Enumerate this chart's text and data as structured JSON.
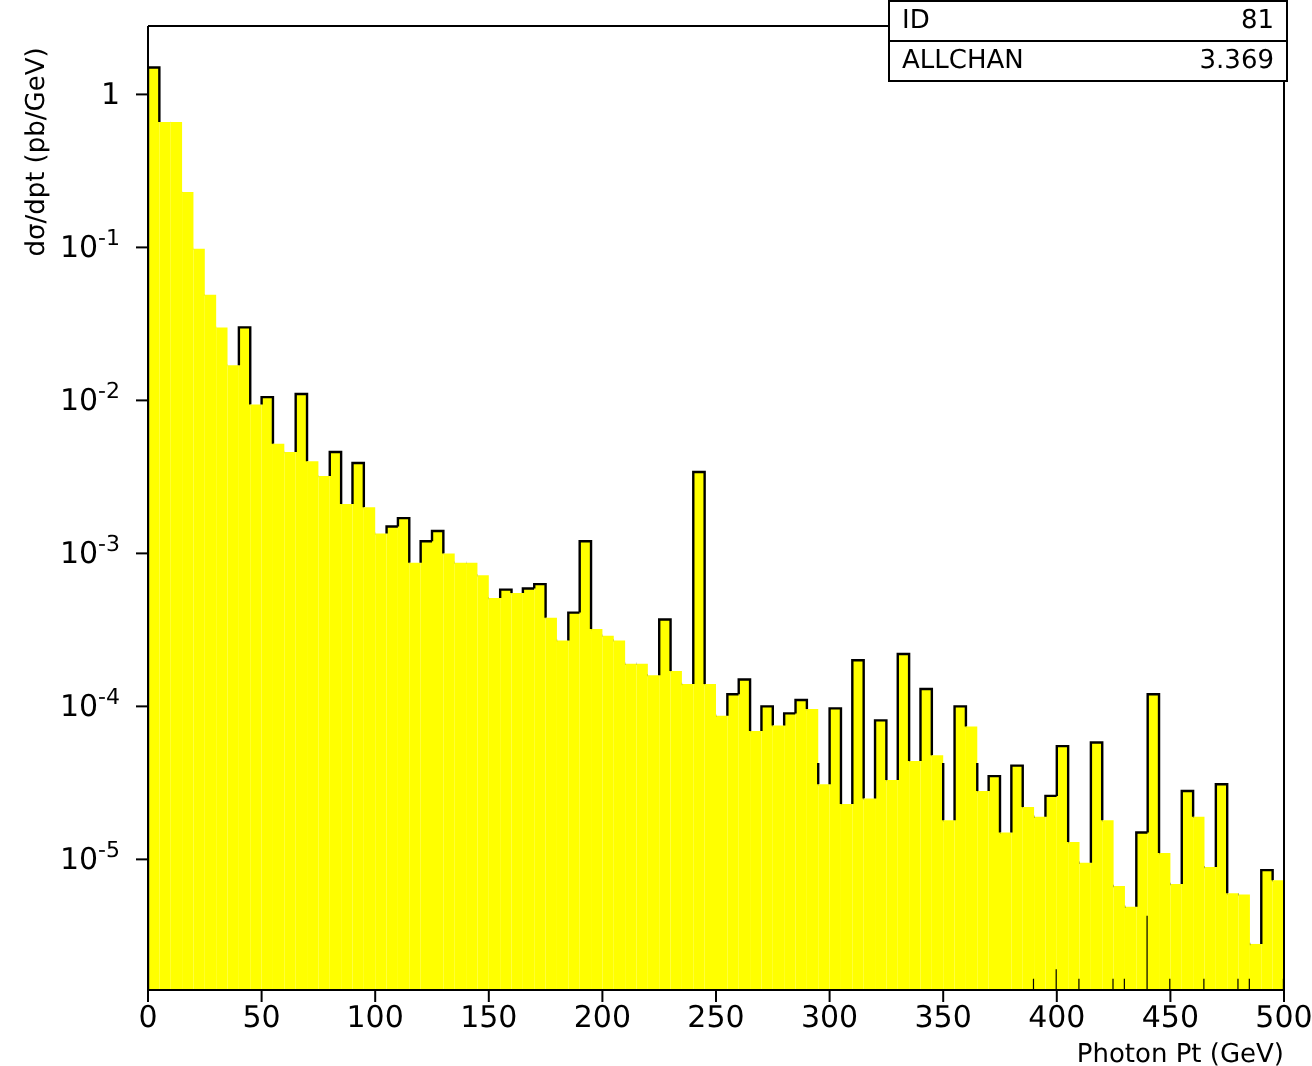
{
  "chart_data": {
    "type": "histogram",
    "xlabel": "Photon Pt (GeV)",
    "ylabel": "dσ/dpt (pb/GeV)",
    "color": "#ffff00",
    "log": "y",
    "bins": [
      0,
      5,
      10,
      15,
      20,
      25,
      30,
      35,
      40,
      45,
      50,
      55,
      60,
      65,
      70,
      75,
      80,
      85,
      90,
      95,
      100,
      105,
      110,
      115,
      120,
      125,
      130,
      135,
      140,
      145,
      150,
      155,
      160,
      165,
      170,
      175,
      180,
      185,
      190,
      195,
      200,
      205,
      210,
      215,
      220,
      225,
      230,
      235,
      240,
      245,
      250,
      255,
      260,
      265,
      270,
      275,
      280,
      285,
      290,
      295,
      300,
      305,
      310,
      315,
      320,
      325,
      330,
      335,
      340,
      345,
      350,
      355,
      360,
      365,
      370,
      375,
      380,
      385,
      390,
      395,
      400,
      405,
      410,
      415,
      420,
      425,
      430,
      435,
      440,
      445,
      450,
      455,
      460,
      465,
      470,
      475,
      480,
      485,
      490,
      495,
      500
    ],
    "values": [
      1.5,
      0.66,
      0.66,
      0.23,
      0.098,
      0.049,
      0.03,
      0.017,
      0.03,
      0.0094,
      0.0105,
      0.0052,
      0.0046,
      0.011,
      0.004,
      0.0032,
      0.0046,
      0.0021,
      0.0039,
      0.002,
      0.00135,
      0.0015,
      0.0017,
      0.00087,
      0.0012,
      0.0014,
      0.001,
      0.00087,
      0.00087,
      0.00072,
      0.00051,
      0.00058,
      0.00055,
      0.00059,
      0.00063,
      0.00038,
      0.00027,
      0.00041,
      0.0012,
      0.00032,
      0.00029,
      0.00027,
      0.00019,
      0.00019,
      0.00016,
      0.00037,
      0.00017,
      0.00014,
      0.0034,
      0.00014,
      8.7e-05,
      0.00012,
      0.00015,
      6.9e-05,
      0.0001,
      7.5e-05,
      9e-05,
      0.00011,
      9.6e-05,
      3.1e-05,
      9.7e-05,
      2.3e-05,
      0.0002,
      2.5e-05,
      8.1e-05,
      3.3e-05,
      0.00022,
      4.4e-05,
      0.00013,
      4.8e-05,
      1.8e-05,
      0.0001,
      7.4e-05,
      2.8e-05,
      3.5e-05,
      1.5e-05,
      4.1e-05,
      2.2e-05,
      1.9e-05,
      2.6e-05,
      5.5e-05,
      1.3e-05,
      9.5e-06,
      5.8e-05,
      1.8e-05,
      6.7e-06,
      4.9e-06,
      1.5e-05,
      0.00012,
      1.1e-05,
      6.9e-06,
      2.8e-05,
      1.9e-05,
      8.9e-06,
      3.1e-05,
      6e-06,
      5.9e-06,
      2.8e-06,
      8.5e-06,
      7.3e-06
    ],
    "xlim": [
      0,
      500
    ],
    "xticks": [
      0,
      50,
      100,
      150,
      200,
      250,
      300,
      350,
      400,
      450,
      500
    ],
    "ylim": [
      1.4e-06,
      2.8
    ],
    "yticks": [
      {
        "value": 1,
        "label": "1"
      },
      {
        "value": 0.1,
        "label": "10$^{-1}$"
      },
      {
        "value": 0.01,
        "label": "10$^{-2}$"
      },
      {
        "value": 0.001,
        "label": "10$^{-3}$"
      },
      {
        "value": 0.0001,
        "label": "10$^{-4}$"
      },
      {
        "value": 1e-05,
        "label": "10$^{-5}$"
      }
    ],
    "annotations": [
      "ID",
      "81",
      "ALLCHAN",
      "3.369"
    ]
  }
}
